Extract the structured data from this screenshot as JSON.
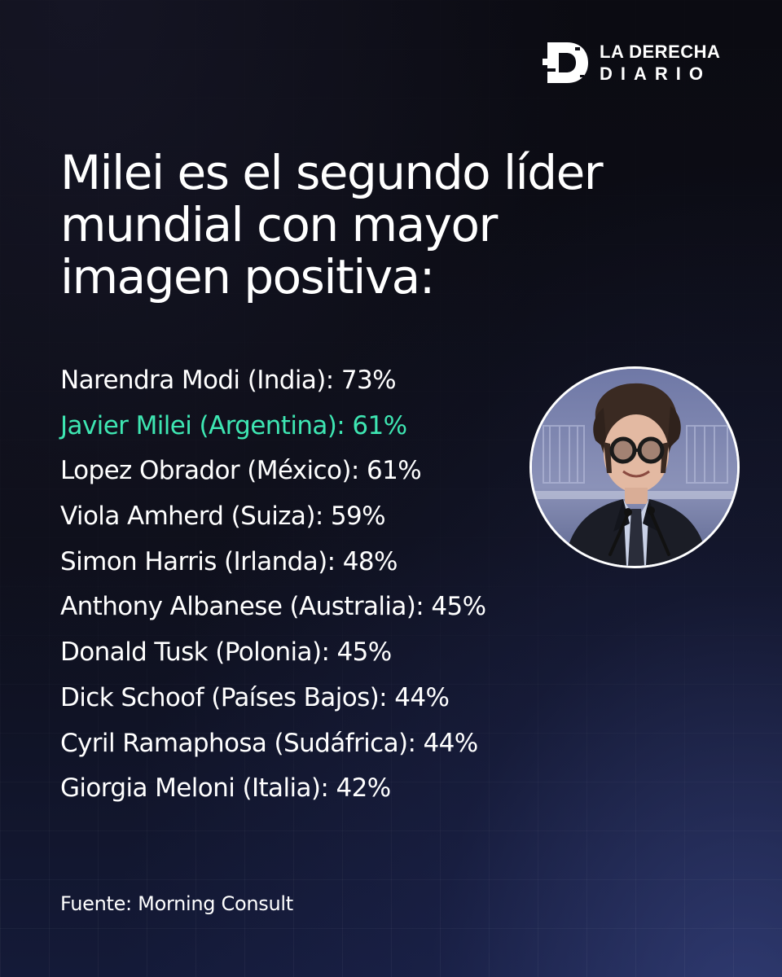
{
  "brand": {
    "name_line1": "LA DERECHA",
    "name_line2": "DIARIO",
    "logo_icon": "d-lettermark-icon"
  },
  "headline": {
    "line1": "Milei es el segundo líder",
    "line2": "mundial con mayor",
    "line3": "imagen positiva:"
  },
  "ranking": [
    {
      "text": "Narendra Modi (India): 73%",
      "leader": "Narendra Modi",
      "country": "India",
      "value": 73,
      "highlight": false
    },
    {
      "text": "Javier Milei (Argentina): 61%",
      "leader": "Javier Milei",
      "country": "Argentina",
      "value": 61,
      "highlight": true
    },
    {
      "text": "Lopez Obrador (México): 61%",
      "leader": "Lopez Obrador",
      "country": "México",
      "value": 61,
      "highlight": false
    },
    {
      "text": "Viola Amherd (Suiza): 59%",
      "leader": "Viola Amherd",
      "country": "Suiza",
      "value": 59,
      "highlight": false
    },
    {
      "text": "Simon Harris (Irlanda): 48%",
      "leader": "Simon Harris",
      "country": "Irlanda",
      "value": 48,
      "highlight": false
    },
    {
      "text": "Anthony Albanese (Australia): 45%",
      "leader": "Anthony Albanese",
      "country": "Australia",
      "value": 45,
      "highlight": false
    },
    {
      "text": "Donald Tusk (Polonia): 45%",
      "leader": "Donald Tusk",
      "country": "Polonia",
      "value": 45,
      "highlight": false
    },
    {
      "text": "Dick Schoof (Países Bajos): 44%",
      "leader": "Dick Schoof",
      "country": "Países Bajos",
      "value": 44,
      "highlight": false
    },
    {
      "text": "Cyril Ramaphosa (Sudáfrica): 44%",
      "leader": "Cyril Ramaphosa",
      "country": "Sudáfrica",
      "value": 44,
      "highlight": false
    },
    {
      "text": "Giorgia Meloni (Italia): 42%",
      "leader": "Giorgia Meloni",
      "country": "Italia",
      "value": 42,
      "highlight": false
    }
  ],
  "source": "Fuente: Morning Consult",
  "colors": {
    "background": "#0b0b12",
    "text": "#ffffff",
    "highlight": "#3ee6b2",
    "photo_border": "#ffffff"
  }
}
